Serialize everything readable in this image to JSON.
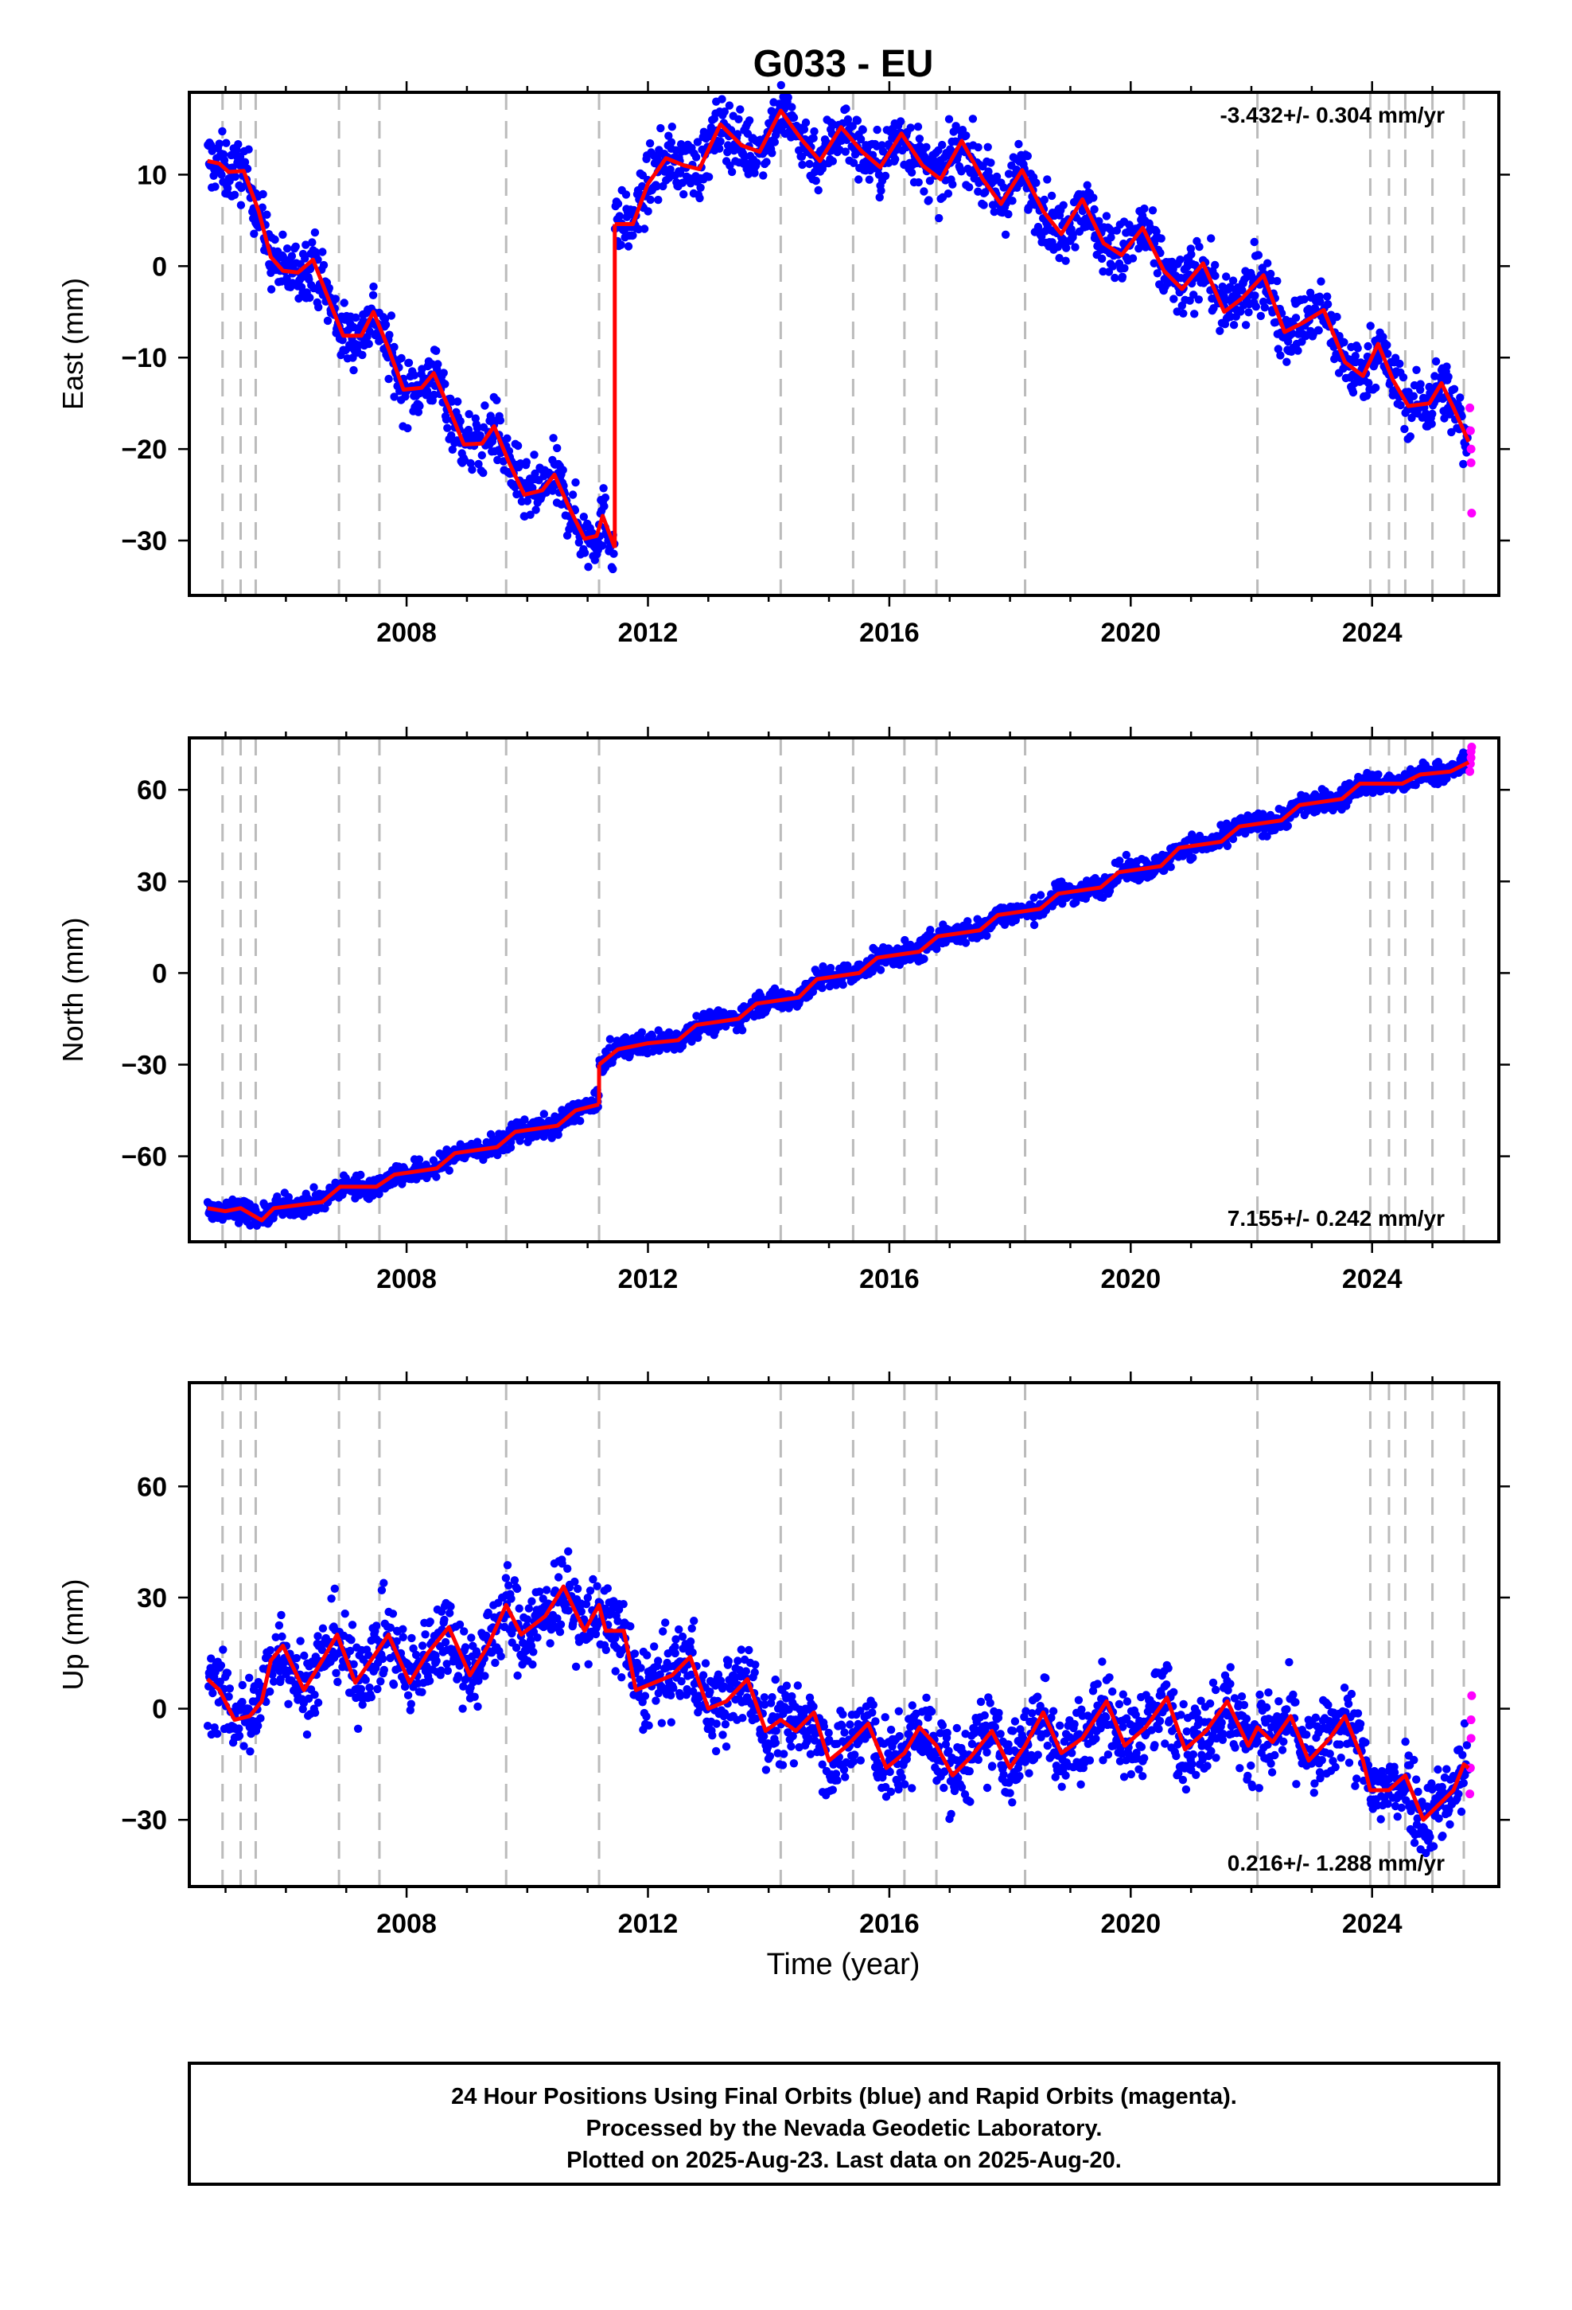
{
  "title": "G033 - EU",
  "xlabel": "Time (year)",
  "footer": {
    "line1": "24 Hour Positions Using Final Orbits (blue) and Rapid Orbits (magenta).",
    "line2": "Processed by the Nevada Geodetic Laboratory.",
    "line3": "Plotted on 2025-Aug-23. Last data on 2025-Aug-20."
  },
  "colors": {
    "final_orbits": "#0000ff",
    "rapid_orbits": "#ff00ff",
    "model_fit": "#ff0000",
    "event_lines": "#bbbbbb",
    "frame": "#000000"
  },
  "chart_data": [
    {
      "type": "scatter",
      "name": "east",
      "ylabel": "East (mm)",
      "rate": "-3.432+/- 0.304 mm/yr",
      "rate_position": "top-right",
      "xlim": [
        2004.4,
        2026.1
      ],
      "ylim": [
        -36,
        19
      ],
      "x_ticks": [
        2008,
        2012,
        2016,
        2020,
        2024
      ],
      "y_ticks": [
        -30,
        -20,
        -10,
        0,
        10
      ],
      "y_tick_labels": [
        "−30",
        "−20",
        "−10",
        "0",
        "10"
      ],
      "event_lines": [
        2004.95,
        2005.25,
        2005.5,
        2006.88,
        2007.55,
        2009.65,
        2011.19,
        2014.2,
        2015.4,
        2016.25,
        2016.78,
        2018.25,
        2022.1,
        2023.97,
        2024.28,
        2024.55,
        2025.0,
        2025.52
      ],
      "fit_segments": [
        [
          [
            2004.7,
            11.5
          ],
          [
            2004.9,
            11.2
          ],
          [
            2005.05,
            10.3
          ],
          [
            2005.3,
            10.4
          ],
          [
            2005.55,
            6.0
          ],
          [
            2005.75,
            1.0
          ],
          [
            2005.95,
            -0.5
          ],
          [
            2006.2,
            -0.7
          ],
          [
            2006.45,
            0.7
          ],
          [
            2006.7,
            -3.5
          ],
          [
            2006.95,
            -7.6
          ],
          [
            2007.25,
            -7.6
          ],
          [
            2007.45,
            -5.0
          ],
          [
            2007.7,
            -9.0
          ],
          [
            2007.95,
            -13.5
          ],
          [
            2008.25,
            -13.3
          ],
          [
            2008.45,
            -11.7
          ],
          [
            2008.7,
            -15.5
          ],
          [
            2008.95,
            -19.5
          ],
          [
            2009.25,
            -19.4
          ],
          [
            2009.45,
            -17.5
          ],
          [
            2009.7,
            -21.5
          ],
          [
            2009.95,
            -25.0
          ],
          [
            2010.25,
            -24.5
          ],
          [
            2010.45,
            -22.8
          ],
          [
            2010.7,
            -26.5
          ],
          [
            2010.95,
            -29.8
          ],
          [
            2011.15,
            -29.5
          ],
          [
            2011.25,
            -27.3
          ],
          [
            2011.45,
            -30.8
          ]
        ],
        [
          [
            2011.45,
            4.6
          ],
          [
            2011.75,
            4.6
          ],
          [
            2012.0,
            9.0
          ],
          [
            2012.3,
            11.8
          ],
          [
            2012.6,
            11.0
          ],
          [
            2012.85,
            10.6
          ],
          [
            2013.2,
            15.5
          ],
          [
            2013.55,
            13.2
          ],
          [
            2013.85,
            12.5
          ],
          [
            2014.2,
            17.0
          ],
          [
            2014.55,
            13.8
          ],
          [
            2014.85,
            11.5
          ],
          [
            2015.2,
            15.2
          ],
          [
            2015.55,
            12.5
          ],
          [
            2015.85,
            10.8
          ],
          [
            2016.2,
            14.5
          ],
          [
            2016.55,
            11.0
          ],
          [
            2016.85,
            9.5
          ],
          [
            2017.2,
            13.7
          ],
          [
            2017.55,
            9.5
          ],
          [
            2017.85,
            6.8
          ],
          [
            2018.2,
            10.5
          ],
          [
            2018.55,
            6.0
          ],
          [
            2018.85,
            3.5
          ],
          [
            2019.2,
            7.3
          ],
          [
            2019.55,
            2.5
          ],
          [
            2019.85,
            1.2
          ],
          [
            2020.2,
            4.2
          ],
          [
            2020.55,
            -0.5
          ],
          [
            2020.85,
            -2.5
          ],
          [
            2021.2,
            0.3
          ],
          [
            2021.55,
            -5.0
          ],
          [
            2021.85,
            -3.5
          ],
          [
            2022.2,
            -1.0
          ],
          [
            2022.55,
            -7.2
          ],
          [
            2022.85,
            -6.2
          ],
          [
            2023.2,
            -4.8
          ],
          [
            2023.55,
            -10.5
          ],
          [
            2023.85,
            -12.0
          ],
          [
            2024.1,
            -8.5
          ],
          [
            2024.35,
            -12.5
          ],
          [
            2024.6,
            -15.3
          ],
          [
            2024.95,
            -15.0
          ],
          [
            2025.15,
            -12.8
          ],
          [
            2025.35,
            -15.5
          ],
          [
            2025.6,
            -19.2
          ]
        ]
      ],
      "scatter_amplitude": 2.4,
      "rapid_orbits_points": [
        [
          2025.62,
          -15.5
        ],
        [
          2025.63,
          -18.0
        ],
        [
          2025.64,
          -20.0
        ],
        [
          2025.64,
          -21.5
        ],
        [
          2025.65,
          -27.0
        ]
      ]
    },
    {
      "type": "scatter",
      "name": "north",
      "ylabel": "North (mm)",
      "rate": "7.155+/- 0.242 mm/yr",
      "rate_position": "bottom-right",
      "xlim": [
        2004.4,
        2026.1
      ],
      "ylim": [
        -88,
        77
      ],
      "x_ticks": [
        2008,
        2012,
        2016,
        2020,
        2024
      ],
      "y_ticks": [
        -60,
        -30,
        0,
        30,
        60
      ],
      "y_tick_labels": [
        "−60",
        "−30",
        "0",
        "30",
        "60"
      ],
      "event_lines": [
        2004.95,
        2005.25,
        2005.5,
        2006.88,
        2007.55,
        2009.65,
        2011.19,
        2014.2,
        2015.4,
        2016.25,
        2016.78,
        2018.25,
        2022.1,
        2023.97,
        2024.28,
        2024.55,
        2025.0,
        2025.52
      ],
      "fit_segments": [
        [
          [
            2004.7,
            -77
          ],
          [
            2005.0,
            -78
          ],
          [
            2005.25,
            -77
          ],
          [
            2005.6,
            -81
          ],
          [
            2005.8,
            -77
          ],
          [
            2006.2,
            -76
          ],
          [
            2006.6,
            -75
          ],
          [
            2006.9,
            -70
          ],
          [
            2007.5,
            -70
          ],
          [
            2007.8,
            -66
          ],
          [
            2008.5,
            -64
          ],
          [
            2008.8,
            -59
          ],
          [
            2009.5,
            -57
          ],
          [
            2009.8,
            -52
          ],
          [
            2010.5,
            -50
          ],
          [
            2010.8,
            -45
          ],
          [
            2011.19,
            -43
          ]
        ],
        [
          [
            2011.19,
            -30
          ],
          [
            2011.5,
            -25
          ],
          [
            2012.0,
            -23
          ],
          [
            2012.5,
            -22
          ],
          [
            2012.8,
            -17
          ],
          [
            2013.5,
            -15
          ],
          [
            2013.8,
            -10
          ],
          [
            2014.5,
            -8
          ],
          [
            2014.8,
            -2
          ],
          [
            2015.5,
            0
          ],
          [
            2015.8,
            5
          ],
          [
            2016.5,
            7
          ],
          [
            2016.8,
            12
          ],
          [
            2017.5,
            14
          ],
          [
            2017.8,
            19
          ],
          [
            2018.5,
            21
          ],
          [
            2018.8,
            26
          ],
          [
            2019.5,
            28
          ],
          [
            2019.8,
            33
          ],
          [
            2020.5,
            35
          ],
          [
            2020.8,
            41
          ],
          [
            2021.5,
            43
          ],
          [
            2021.8,
            48
          ],
          [
            2022.5,
            50
          ],
          [
            2022.8,
            55
          ],
          [
            2023.5,
            57
          ],
          [
            2023.8,
            62
          ],
          [
            2024.5,
            62
          ],
          [
            2024.8,
            65
          ],
          [
            2025.3,
            66
          ],
          [
            2025.6,
            69
          ]
        ]
      ],
      "scatter_amplitude": 2.6,
      "rapid_orbits_points": [
        [
          2025.62,
          66.0
        ],
        [
          2025.63,
          68.5
        ],
        [
          2025.64,
          70.5
        ],
        [
          2025.64,
          72.5
        ],
        [
          2025.65,
          74.0
        ]
      ]
    },
    {
      "type": "scatter",
      "name": "up",
      "ylabel": "Up (mm)",
      "rate": "0.216+/- 1.288 mm/yr",
      "rate_position": "bottom-right",
      "xlim": [
        2004.4,
        2026.1
      ],
      "ylim": [
        -48,
        88
      ],
      "x_ticks": [
        2008,
        2012,
        2016,
        2020,
        2024
      ],
      "y_ticks": [
        -30,
        0,
        30,
        60
      ],
      "y_tick_labels": [
        "−30",
        "0",
        "30",
        "60"
      ],
      "event_lines": [
        2004.95,
        2005.25,
        2005.5,
        2006.88,
        2007.55,
        2009.65,
        2011.19,
        2014.2,
        2015.4,
        2016.25,
        2016.78,
        2018.25,
        2022.1,
        2023.97,
        2024.28,
        2024.55,
        2025.0,
        2025.52
      ],
      "fit_segments": [
        [
          [
            2004.7,
            8
          ],
          [
            2004.9,
            5
          ],
          [
            2005.15,
            -3
          ],
          [
            2005.4,
            -2
          ],
          [
            2005.6,
            2
          ],
          [
            2005.75,
            13
          ],
          [
            2005.95,
            17
          ],
          [
            2006.3,
            5
          ],
          [
            2006.6,
            13
          ],
          [
            2006.85,
            20
          ],
          [
            2007.15,
            7
          ],
          [
            2007.45,
            14
          ],
          [
            2007.7,
            20
          ],
          [
            2008.05,
            7
          ],
          [
            2008.35,
            15
          ],
          [
            2008.7,
            22
          ],
          [
            2009.05,
            9
          ],
          [
            2009.35,
            17
          ],
          [
            2009.65,
            28
          ],
          [
            2009.9,
            20
          ],
          [
            2010.3,
            25
          ],
          [
            2010.6,
            33
          ],
          [
            2010.95,
            21
          ],
          [
            2011.19,
            28
          ],
          [
            2011.3,
            21
          ],
          [
            2011.6,
            21
          ],
          [
            2011.8,
            5
          ],
          [
            2012.1,
            7
          ],
          [
            2012.4,
            9
          ],
          [
            2012.7,
            14
          ],
          [
            2013.0,
            0
          ],
          [
            2013.3,
            2
          ],
          [
            2013.65,
            8
          ],
          [
            2013.95,
            -6
          ],
          [
            2014.2,
            -3
          ],
          [
            2014.45,
            -6
          ],
          [
            2014.75,
            -1
          ],
          [
            2015.0,
            -14
          ],
          [
            2015.3,
            -10
          ],
          [
            2015.65,
            -4
          ],
          [
            2015.95,
            -16
          ],
          [
            2016.25,
            -12
          ],
          [
            2016.5,
            -5
          ],
          [
            2016.78,
            -10
          ],
          [
            2017.05,
            -18
          ],
          [
            2017.35,
            -13
          ],
          [
            2017.7,
            -6
          ],
          [
            2018.0,
            -16
          ],
          [
            2018.25,
            -10
          ],
          [
            2018.55,
            -1
          ],
          [
            2018.85,
            -12
          ],
          [
            2019.2,
            -8
          ],
          [
            2019.6,
            2
          ],
          [
            2019.9,
            -10
          ],
          [
            2020.25,
            -5
          ],
          [
            2020.6,
            3
          ],
          [
            2020.9,
            -11
          ],
          [
            2021.25,
            -6
          ],
          [
            2021.6,
            2
          ],
          [
            2021.95,
            -10
          ],
          [
            2022.1,
            -5
          ],
          [
            2022.35,
            -9
          ],
          [
            2022.65,
            -2
          ],
          [
            2022.95,
            -14
          ],
          [
            2023.3,
            -8
          ],
          [
            2023.55,
            -2
          ],
          [
            2023.85,
            -14
          ],
          [
            2023.97,
            -22
          ],
          [
            2024.28,
            -22
          ],
          [
            2024.55,
            -18
          ],
          [
            2024.85,
            -30
          ],
          [
            2025.1,
            -26
          ],
          [
            2025.35,
            -22
          ],
          [
            2025.52,
            -15
          ],
          [
            2025.6,
            -16
          ]
        ]
      ],
      "scatter_amplitude": 8,
      "rapid_orbits_points": [
        [
          2025.62,
          -23.0
        ],
        [
          2025.63,
          -16.0
        ],
        [
          2025.64,
          -8.0
        ],
        [
          2025.64,
          -3.0
        ],
        [
          2025.65,
          3.5
        ]
      ]
    }
  ]
}
